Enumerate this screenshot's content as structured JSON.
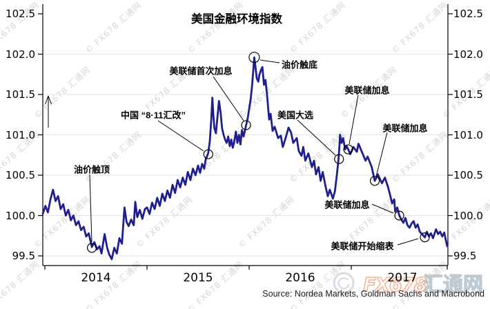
{
  "chart_data": {
    "type": "line",
    "title": "美国金融环境指数",
    "source": "Source: Nordea Markets, Goldman Sachs and Macrobond",
    "x_tick_labels": [
      "2014",
      "2015",
      "2016",
      "2017"
    ],
    "x_tick_values": [
      2014,
      2015,
      2016,
      2017
    ],
    "y_tick_labels": [
      "99.5",
      "100.0",
      "100.5",
      "101.0",
      "101.5",
      "102.0",
      "102.5"
    ],
    "y_tick_values": [
      99.5,
      100.0,
      100.5,
      101.0,
      101.5,
      102.0,
      102.5
    ],
    "xlim": [
      2013.98,
      2017.95
    ],
    "ylim": [
      99.5,
      102.5
    ],
    "grid": true,
    "line_color": "#1e1e91",
    "series": [
      {
        "name": "美国金融环境指数",
        "points": [
          [
            2013.98,
            100.02
          ],
          [
            2014.005,
            100.12
          ],
          [
            2014.03,
            100.04
          ],
          [
            2014.055,
            100.2
          ],
          [
            2014.08,
            100.32
          ],
          [
            2014.105,
            100.18
          ],
          [
            2014.13,
            100.24
          ],
          [
            2014.155,
            100.08
          ],
          [
            2014.18,
            100.14
          ],
          [
            2014.205,
            100.0
          ],
          [
            2014.23,
            100.07
          ],
          [
            2014.255,
            99.94
          ],
          [
            2014.28,
            100.0
          ],
          [
            2014.305,
            99.88
          ],
          [
            2014.33,
            99.93
          ],
          [
            2014.355,
            99.82
          ],
          [
            2014.38,
            99.86
          ],
          [
            2014.405,
            99.74
          ],
          [
            2014.43,
            99.78
          ],
          [
            2014.46,
            99.61
          ],
          [
            2014.485,
            99.67
          ],
          [
            2014.51,
            99.58
          ],
          [
            2014.535,
            99.62
          ],
          [
            2014.555,
            99.53
          ],
          [
            2014.585,
            99.77
          ],
          [
            2014.61,
            99.6
          ],
          [
            2014.63,
            99.52
          ],
          [
            2014.655,
            99.46
          ],
          [
            2014.68,
            99.6
          ],
          [
            2014.705,
            99.53
          ],
          [
            2014.73,
            99.72
          ],
          [
            2014.755,
            99.65
          ],
          [
            2014.78,
            100.1
          ],
          [
            2014.8,
            99.92
          ],
          [
            2014.82,
            99.87
          ],
          [
            2014.845,
            99.95
          ],
          [
            2014.87,
            99.88
          ],
          [
            2014.885,
            100.17
          ],
          [
            2014.905,
            99.98
          ],
          [
            2014.93,
            100.07
          ],
          [
            2014.955,
            99.96
          ],
          [
            2014.98,
            100.08
          ],
          [
            2015.0,
            100.1
          ],
          [
            2015.025,
            100.02
          ],
          [
            2015.05,
            100.16
          ],
          [
            2015.075,
            100.08
          ],
          [
            2015.1,
            100.22
          ],
          [
            2015.125,
            100.12
          ],
          [
            2015.15,
            100.27
          ],
          [
            2015.175,
            100.18
          ],
          [
            2015.2,
            100.31
          ],
          [
            2015.225,
            100.22
          ],
          [
            2015.25,
            100.38
          ],
          [
            2015.275,
            100.28
          ],
          [
            2015.3,
            100.44
          ],
          [
            2015.325,
            100.35
          ],
          [
            2015.35,
            100.47
          ],
          [
            2015.375,
            100.38
          ],
          [
            2015.4,
            100.54
          ],
          [
            2015.425,
            100.44
          ],
          [
            2015.45,
            100.58
          ],
          [
            2015.475,
            100.5
          ],
          [
            2015.5,
            100.62
          ],
          [
            2015.52,
            100.53
          ],
          [
            2015.54,
            100.64
          ],
          [
            2015.56,
            100.58
          ],
          [
            2015.575,
            100.7
          ],
          [
            2015.59,
            100.74
          ],
          [
            2015.6,
            100.78
          ],
          [
            2015.615,
            100.92
          ],
          [
            2015.63,
            101.2
          ],
          [
            2015.64,
            101.46
          ],
          [
            2015.65,
            101.24
          ],
          [
            2015.66,
            101.08
          ],
          [
            2015.675,
            101.02
          ],
          [
            2015.69,
            101.22
          ],
          [
            2015.705,
            101.42
          ],
          [
            2015.72,
            101.28
          ],
          [
            2015.735,
            101.08
          ],
          [
            2015.75,
            101.0
          ],
          [
            2015.765,
            100.94
          ],
          [
            2015.78,
            100.9
          ],
          [
            2015.795,
            100.98
          ],
          [
            2015.81,
            100.86
          ],
          [
            2015.825,
            100.94
          ],
          [
            2015.84,
            100.84
          ],
          [
            2015.855,
            100.92
          ],
          [
            2015.87,
            101.04
          ],
          [
            2015.885,
            100.9
          ],
          [
            2015.9,
            101.0
          ],
          [
            2015.915,
            100.88
          ],
          [
            2015.93,
            101.06
          ],
          [
            2015.945,
            100.98
          ],
          [
            2015.96,
            101.06
          ],
          [
            2015.97,
            101.12
          ],
          [
            2015.985,
            101.2
          ],
          [
            2016.0,
            101.32
          ],
          [
            2016.015,
            101.44
          ],
          [
            2016.03,
            101.62
          ],
          [
            2016.045,
            101.88
          ],
          [
            2016.05,
            101.96
          ],
          [
            2016.06,
            101.86
          ],
          [
            2016.075,
            101.7
          ],
          [
            2016.09,
            101.66
          ],
          [
            2016.1,
            101.74
          ],
          [
            2016.115,
            101.8
          ],
          [
            2016.13,
            101.84
          ],
          [
            2016.145,
            101.62
          ],
          [
            2016.16,
            101.68
          ],
          [
            2016.175,
            101.5
          ],
          [
            2016.196,
            101.19
          ],
          [
            2016.21,
            101.26
          ],
          [
            2016.23,
            101.05
          ],
          [
            2016.25,
            101.1
          ],
          [
            2016.284,
            100.96
          ],
          [
            2016.31,
            100.99
          ],
          [
            2016.33,
            100.85
          ],
          [
            2016.35,
            100.93
          ],
          [
            2016.386,
            101.09
          ],
          [
            2016.41,
            101.03
          ],
          [
            2016.432,
            100.9
          ],
          [
            2016.466,
            100.96
          ],
          [
            2016.486,
            100.8
          ],
          [
            2016.513,
            100.74
          ],
          [
            2016.53,
            100.85
          ],
          [
            2016.55,
            100.68
          ],
          [
            2016.58,
            100.77
          ],
          [
            2016.615,
            100.6
          ],
          [
            2016.635,
            100.68
          ],
          [
            2016.655,
            100.51
          ],
          [
            2016.68,
            100.6
          ],
          [
            2016.7,
            100.43
          ],
          [
            2016.72,
            100.54
          ],
          [
            2016.75,
            100.35
          ],
          [
            2016.77,
            100.24
          ],
          [
            2016.79,
            100.32
          ],
          [
            2016.82,
            100.21
          ],
          [
            2016.84,
            100.3
          ],
          [
            2016.86,
            100.52
          ],
          [
            2016.875,
            100.7
          ],
          [
            2016.885,
            100.88
          ],
          [
            2016.89,
            101.0
          ],
          [
            2016.905,
            100.9
          ],
          [
            2016.92,
            100.96
          ],
          [
            2016.94,
            100.82
          ],
          [
            2016.955,
            100.86
          ],
          [
            2016.97,
            100.82
          ],
          [
            2016.99,
            100.76
          ],
          [
            2017.02,
            100.85
          ],
          [
            2017.055,
            100.79
          ],
          [
            2017.07,
            100.89
          ],
          [
            2017.11,
            100.77
          ],
          [
            2017.14,
            100.68
          ],
          [
            2017.16,
            100.73
          ],
          [
            2017.2,
            100.6
          ],
          [
            2017.23,
            100.43
          ],
          [
            2017.26,
            100.51
          ],
          [
            2017.3,
            100.4
          ],
          [
            2017.33,
            100.47
          ],
          [
            2017.36,
            100.35
          ],
          [
            2017.375,
            100.28
          ],
          [
            2017.4,
            100.15
          ],
          [
            2017.42,
            100.2
          ],
          [
            2017.43,
            100.05
          ],
          [
            2017.45,
            100.1
          ],
          [
            2017.47,
            100.0
          ],
          [
            2017.49,
            99.95
          ],
          [
            2017.51,
            99.91
          ],
          [
            2017.53,
            99.97
          ],
          [
            2017.55,
            99.88
          ],
          [
            2017.57,
            99.85
          ],
          [
            2017.59,
            99.9
          ],
          [
            2017.61,
            99.93
          ],
          [
            2017.63,
            99.85
          ],
          [
            2017.65,
            99.89
          ],
          [
            2017.67,
            99.8
          ],
          [
            2017.7,
            99.76
          ],
          [
            2017.72,
            99.73
          ],
          [
            2017.74,
            99.8
          ],
          [
            2017.76,
            99.74
          ],
          [
            2017.78,
            99.78
          ],
          [
            2017.8,
            99.72
          ],
          [
            2017.83,
            99.83
          ],
          [
            2017.85,
            99.77
          ],
          [
            2017.87,
            99.8
          ],
          [
            2017.89,
            99.74
          ],
          [
            2017.91,
            99.79
          ],
          [
            2017.925,
            99.7
          ],
          [
            2017.94,
            99.62
          ]
        ]
      }
    ],
    "annotations": [
      {
        "label": "油价触顶",
        "t": 2014.46,
        "v": 99.6
      },
      {
        "label": "中国 “8·11汇改”",
        "t": 2015.6,
        "v": 100.76
      },
      {
        "label": "美联储首次加息",
        "t": 2015.97,
        "v": 101.12
      },
      {
        "label": "油价触底",
        "t": 2016.05,
        "v": 101.96
      },
      {
        "label": "美国大选",
        "t": 2016.88,
        "v": 100.7
      },
      {
        "label": "美联储加息",
        "t": 2016.97,
        "v": 100.82
      },
      {
        "label": "美联储加息",
        "t": 2017.23,
        "v": 100.43
      },
      {
        "label": "美联储加息",
        "t": 2017.47,
        "v": 100.0
      },
      {
        "label": "美联储开始缩表",
        "t": 2017.72,
        "v": 99.73
      }
    ]
  },
  "watermark": {
    "text": "© FX678 汇通网",
    "color": "#d6d6d6"
  },
  "logo": {
    "fx_text": "FX678",
    "cn_text": "汇通网",
    "orange": "#f09468",
    "gray": "#b0bcc6"
  }
}
